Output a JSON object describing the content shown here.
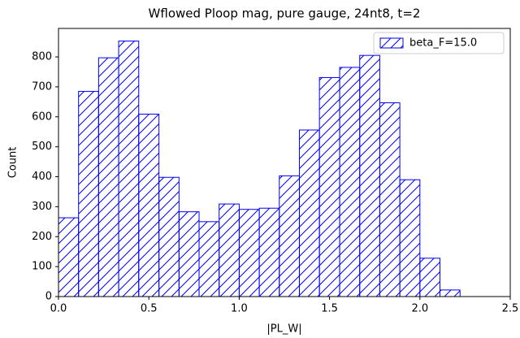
{
  "chart_data": {
    "type": "histogram",
    "title": "Wflowed Ploop mag, pure gauge, 24nt8, t=2",
    "xlabel": "|PL_W|",
    "ylabel": "Count",
    "bins": [
      0,
      0.111,
      0.222,
      0.333,
      0.444,
      0.556,
      0.667,
      0.778,
      0.889,
      1.0,
      1.111,
      1.222,
      1.333,
      1.444,
      1.556,
      1.667,
      1.778,
      1.889,
      2.0,
      2.111,
      2.222
    ],
    "series": [
      {
        "name": "beta_F=15.0",
        "color": "#0000ff",
        "values": [
          263,
          685,
          797,
          853,
          609,
          398,
          283,
          250,
          309,
          291,
          295,
          403,
          556,
          731,
          765,
          805,
          647,
          390,
          128,
          22
        ]
      }
    ],
    "xlim": [
      0,
      2.5
    ],
    "ylim": [
      0,
      895
    ],
    "xticks": [
      {
        "value": 0,
        "label": "0.0"
      },
      {
        "value": 0.5,
        "label": "0.5"
      },
      {
        "value": 1,
        "label": "1.0"
      },
      {
        "value": 1.5,
        "label": "1.5"
      },
      {
        "value": 2,
        "label": "2.0"
      },
      {
        "value": 2.5,
        "label": "2.5"
      }
    ],
    "yticks": [
      0,
      100,
      200,
      300,
      400,
      500,
      600,
      700,
      800
    ],
    "legend": "upper right",
    "hatch": "/"
  }
}
